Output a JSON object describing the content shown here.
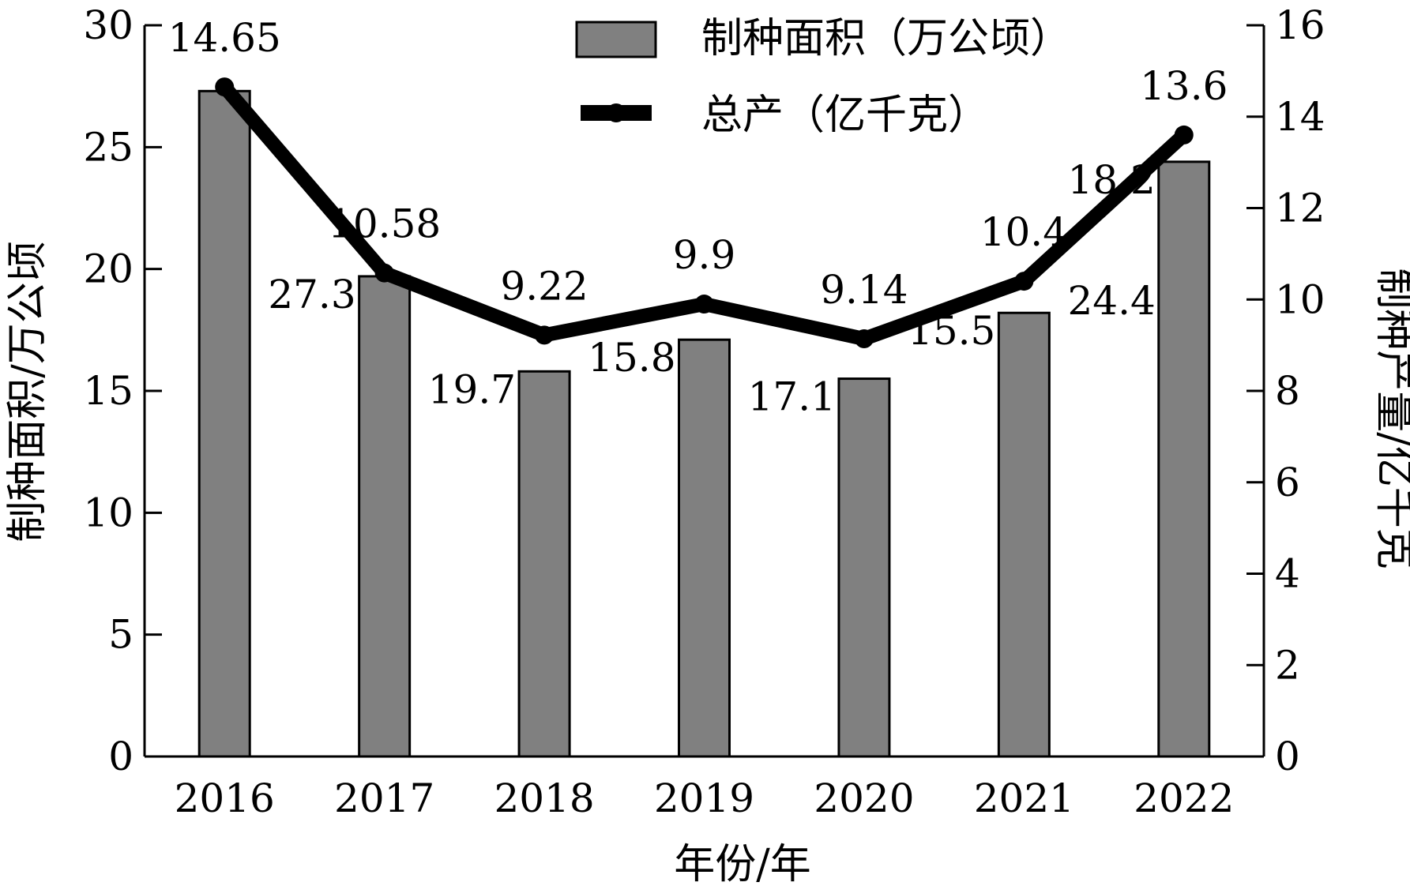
{
  "chart_data": {
    "type": "bar",
    "categories": [
      "2016",
      "2017",
      "2018",
      "2019",
      "2020",
      "2021",
      "2022"
    ],
    "series": [
      {
        "name": "制种面积（万公顷）",
        "type": "bar",
        "axis": "left",
        "values": [
          27.3,
          19.7,
          15.8,
          17.1,
          15.5,
          18.2,
          24.4
        ],
        "labels": [
          "27.3",
          "19.7",
          "15.8",
          "17.1",
          "15.5",
          "18.2",
          "24.4"
        ],
        "color": "#808080"
      },
      {
        "name": "总产（亿千克）",
        "type": "line",
        "axis": "right",
        "values": [
          14.65,
          10.58,
          9.22,
          9.9,
          9.14,
          10.4,
          13.6
        ],
        "labels": [
          "14.65",
          "10.58",
          "9.22",
          "9.9",
          "9.14",
          "10.4",
          "13.6"
        ],
        "color": "#000000"
      }
    ],
    "xlabel": "年份/年",
    "ylabel_left": "制种面积/万公顷",
    "ylabel_right": "制种产量/亿千克",
    "ylim_left": [
      0,
      30
    ],
    "yticks_left": [
      "0",
      "5",
      "10",
      "15",
      "20",
      "25",
      "30"
    ],
    "ylim_right": [
      0,
      16
    ],
    "yticks_right": [
      "0",
      "2",
      "4",
      "6",
      "8",
      "10",
      "12",
      "14",
      "16"
    ],
    "grid": false,
    "legend_position": "top-center"
  }
}
